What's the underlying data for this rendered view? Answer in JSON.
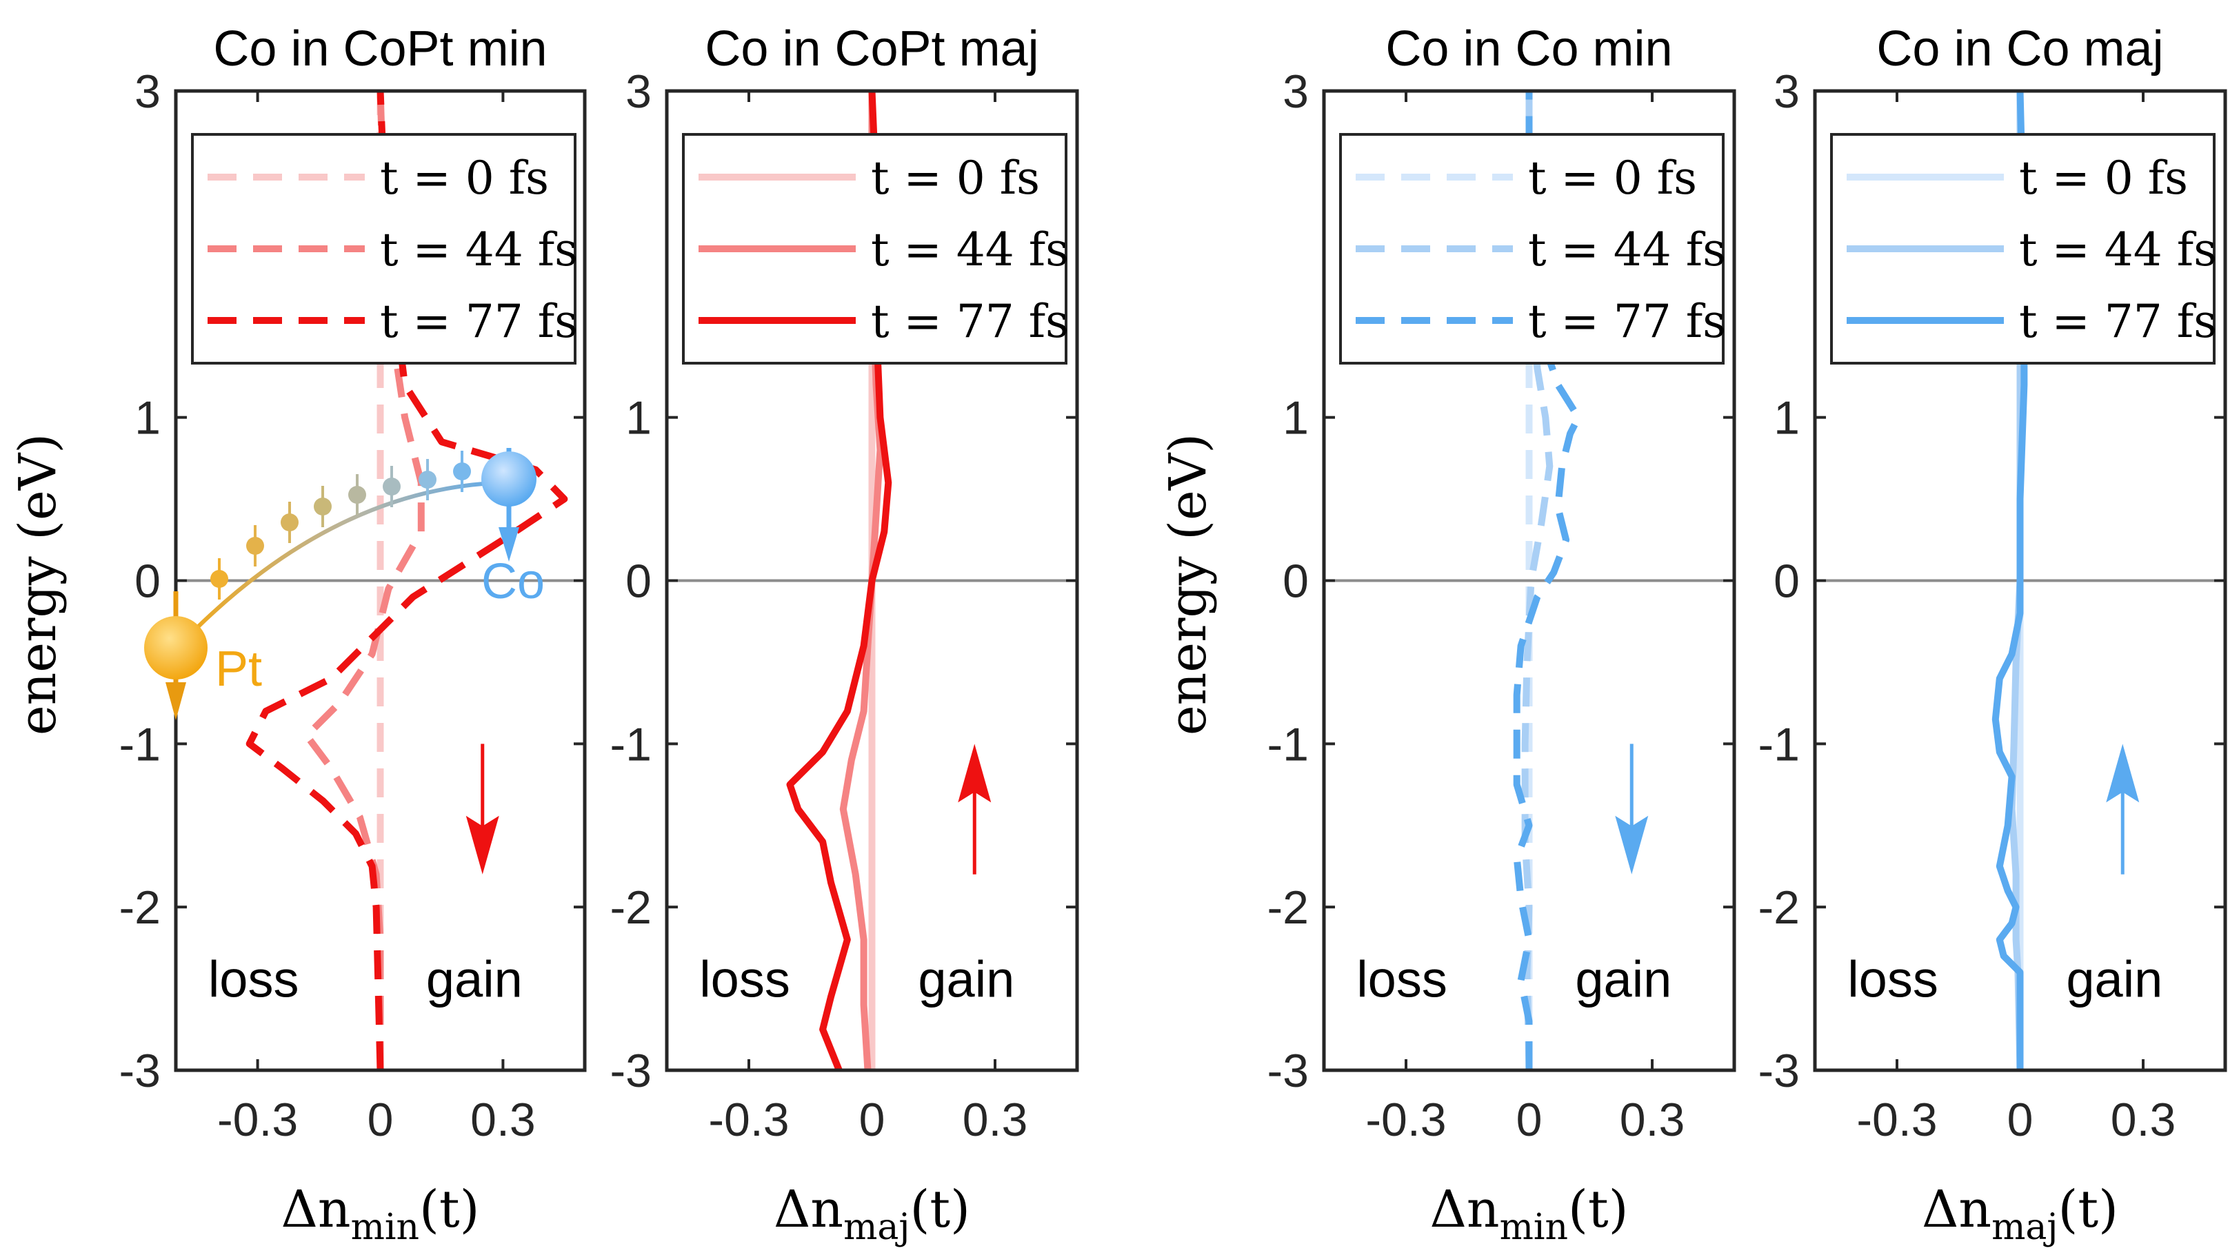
{
  "ylabel": "energy (eV)",
  "xtick_labels": [
    "-0.3",
    "0",
    "0.3"
  ],
  "ytick_labels": [
    "3",
    "1",
    "0",
    "-1",
    "-2",
    "-3"
  ],
  "region_labels": {
    "loss": "loss",
    "gain": "gain"
  },
  "legend_entries": [
    "t = 0 fs",
    "t = 44 fs",
    "t = 77 fs"
  ],
  "inset": {
    "pt_label": "Pt",
    "co_label": "Co",
    "pt_color": "#f3a712",
    "co_color": "#5aaaf0"
  },
  "colors": {
    "red": [
      "#f9c8c8",
      "#f58383",
      "#ee1111"
    ],
    "blue": [
      "#d4e7fb",
      "#a9cff5",
      "#5aaaf0"
    ]
  },
  "chart_data": [
    {
      "type": "line",
      "title": "Co in CoPt min",
      "xlabel_main": "Δn",
      "xlabel_sub": "min",
      "xlabel_arg": "(t)",
      "xlim": [
        -0.5,
        0.5
      ],
      "ylim": [
        -3,
        3
      ],
      "xticks": [
        -0.3,
        0,
        0.3
      ],
      "yticks": [
        3,
        1,
        0,
        -1,
        -2,
        -3
      ],
      "line_style": "dashed",
      "color_set": "red",
      "spin_arrow": "down",
      "show_legend": true,
      "legend_pos": "top-left",
      "series": [
        {
          "name": "t = 0 fs",
          "points": [
            [
              0,
              -3
            ],
            [
              0,
              -2
            ],
            [
              0,
              -1
            ],
            [
              0,
              0
            ],
            [
              0,
              1
            ],
            [
              0,
              2
            ],
            [
              0,
              3
            ]
          ]
        },
        {
          "name": "t = 44 fs",
          "points": [
            [
              0,
              -3
            ],
            [
              0,
              -2.2
            ],
            [
              -0.01,
              -1.8
            ],
            [
              -0.05,
              -1.45
            ],
            [
              -0.12,
              -1.15
            ],
            [
              -0.18,
              -0.95
            ],
            [
              -0.1,
              -0.75
            ],
            [
              -0.02,
              -0.45
            ],
            [
              0.02,
              -0.05
            ],
            [
              0.1,
              0.3
            ],
            [
              0.1,
              0.6
            ],
            [
              0.06,
              1.0
            ],
            [
              0.03,
              1.5
            ],
            [
              0.01,
              2.2
            ],
            [
              0,
              3
            ]
          ]
        },
        {
          "name": "t = 77 fs",
          "points": [
            [
              0,
              -3
            ],
            [
              -0.01,
              -2.0
            ],
            [
              -0.02,
              -1.75
            ],
            [
              -0.06,
              -1.55
            ],
            [
              -0.14,
              -1.35
            ],
            [
              -0.24,
              -1.15
            ],
            [
              -0.32,
              -1.0
            ],
            [
              -0.28,
              -0.8
            ],
            [
              -0.12,
              -0.6
            ],
            [
              0.0,
              -0.3
            ],
            [
              0.08,
              -0.1
            ],
            [
              0.3,
              0.25
            ],
            [
              0.45,
              0.5
            ],
            [
              0.38,
              0.68
            ],
            [
              0.15,
              0.85
            ],
            [
              0.06,
              1.2
            ],
            [
              0.03,
              1.8
            ],
            [
              0.01,
              2.4
            ],
            [
              0.0,
              3
            ]
          ]
        }
      ]
    },
    {
      "type": "line",
      "title": "Co in CoPt maj",
      "xlabel_main": "Δn",
      "xlabel_sub": "maj",
      "xlabel_arg": "(t)",
      "xlim": [
        -0.5,
        0.5
      ],
      "ylim": [
        -3,
        3
      ],
      "xticks": [
        -0.3,
        0,
        0.3
      ],
      "yticks": [
        3,
        1,
        0,
        -1,
        -2,
        -3
      ],
      "line_style": "solid",
      "color_set": "red",
      "spin_arrow": "up",
      "show_legend": true,
      "legend_pos": "top-left",
      "series": [
        {
          "name": "t = 0 fs",
          "points": [
            [
              0,
              -3
            ],
            [
              0,
              -2
            ],
            [
              0,
              -1
            ],
            [
              0,
              0
            ],
            [
              0,
              1
            ],
            [
              0,
              2
            ],
            [
              0,
              3
            ]
          ]
        },
        {
          "name": "t = 44 fs",
          "points": [
            [
              -0.01,
              -3
            ],
            [
              -0.02,
              -2.6
            ],
            [
              -0.02,
              -2.2
            ],
            [
              -0.04,
              -1.8
            ],
            [
              -0.07,
              -1.4
            ],
            [
              -0.05,
              -1.1
            ],
            [
              -0.02,
              -0.8
            ],
            [
              -0.01,
              -0.4
            ],
            [
              0.0,
              0.0
            ],
            [
              0.01,
              0.4
            ],
            [
              0.02,
              0.8
            ],
            [
              0.01,
              1.2
            ],
            [
              0.0,
              2.0
            ],
            [
              0.0,
              3
            ]
          ]
        },
        {
          "name": "t = 77 fs",
          "points": [
            [
              -0.08,
              -3
            ],
            [
              -0.12,
              -2.75
            ],
            [
              -0.1,
              -2.55
            ],
            [
              -0.06,
              -2.2
            ],
            [
              -0.1,
              -1.85
            ],
            [
              -0.12,
              -1.6
            ],
            [
              -0.18,
              -1.4
            ],
            [
              -0.2,
              -1.25
            ],
            [
              -0.12,
              -1.05
            ],
            [
              -0.06,
              -0.8
            ],
            [
              -0.02,
              -0.4
            ],
            [
              0.0,
              0.0
            ],
            [
              0.03,
              0.3
            ],
            [
              0.04,
              0.6
            ],
            [
              0.02,
              1.0
            ],
            [
              0.01,
              1.6
            ],
            [
              0.01,
              2.4
            ],
            [
              0.0,
              3
            ]
          ]
        }
      ]
    },
    {
      "type": "line",
      "title": "Co in Co min",
      "xlabel_main": "Δn",
      "xlabel_sub": "min",
      "xlabel_arg": "(t)",
      "xlim": [
        -0.5,
        0.5
      ],
      "ylim": [
        -3,
        3
      ],
      "xticks": [
        -0.3,
        0,
        0.3
      ],
      "yticks": [
        3,
        1,
        0,
        -1,
        -2,
        -3
      ],
      "line_style": "dashed",
      "color_set": "blue",
      "spin_arrow": "down",
      "show_legend": true,
      "legend_pos": "top-left",
      "series": [
        {
          "name": "t = 0 fs",
          "points": [
            [
              0,
              -3
            ],
            [
              0,
              -2
            ],
            [
              0,
              -1
            ],
            [
              0,
              0
            ],
            [
              0,
              1
            ],
            [
              0,
              2
            ],
            [
              0,
              3
            ]
          ]
        },
        {
          "name": "t = 44 fs",
          "points": [
            [
              0,
              -3
            ],
            [
              -0.005,
              -2.4
            ],
            [
              0,
              -2
            ],
            [
              -0.01,
              -1.6
            ],
            [
              -0.01,
              -1.0
            ],
            [
              -0.005,
              -0.5
            ],
            [
              0.005,
              0.0
            ],
            [
              0.03,
              0.35
            ],
            [
              0.05,
              0.7
            ],
            [
              0.04,
              1.0
            ],
            [
              0.02,
              1.3
            ],
            [
              0.0,
              2.0
            ],
            [
              0,
              3
            ]
          ]
        },
        {
          "name": "t = 77 fs",
          "points": [
            [
              0,
              -3
            ],
            [
              0.0,
              -2.7
            ],
            [
              -0.02,
              -2.45
            ],
            [
              0.0,
              -2.2
            ],
            [
              -0.02,
              -1.95
            ],
            [
              -0.03,
              -1.7
            ],
            [
              0.0,
              -1.5
            ],
            [
              -0.03,
              -1.25
            ],
            [
              -0.03,
              -1.0
            ],
            [
              -0.03,
              -0.7
            ],
            [
              -0.02,
              -0.4
            ],
            [
              0.02,
              -0.1
            ],
            [
              0.06,
              0.05
            ],
            [
              0.09,
              0.25
            ],
            [
              0.07,
              0.45
            ],
            [
              0.08,
              0.7
            ],
            [
              0.1,
              0.9
            ],
            [
              0.12,
              1.0
            ],
            [
              0.07,
              1.2
            ],
            [
              0.03,
              1.5
            ],
            [
              0.0,
              2.5
            ],
            [
              0,
              3
            ]
          ]
        }
      ]
    },
    {
      "type": "line",
      "title": "Co in Co maj",
      "xlabel_main": "Δn",
      "xlabel_sub": "maj",
      "xlabel_arg": "(t)",
      "xlim": [
        -0.5,
        0.5
      ],
      "ylim": [
        -3,
        3
      ],
      "xticks": [
        -0.3,
        0,
        0.3
      ],
      "yticks": [
        3,
        1,
        0,
        -1,
        -2,
        -3
      ],
      "line_style": "solid",
      "color_set": "blue",
      "spin_arrow": "up",
      "show_legend": true,
      "legend_pos": "top-left",
      "series": [
        {
          "name": "t = 0 fs",
          "points": [
            [
              0,
              -3
            ],
            [
              0,
              -2
            ],
            [
              0,
              -1
            ],
            [
              0,
              0
            ],
            [
              0,
              1
            ],
            [
              0,
              2
            ],
            [
              0,
              3
            ]
          ]
        },
        {
          "name": "t = 44 fs",
          "points": [
            [
              0,
              -3
            ],
            [
              -0.005,
              -2.4
            ],
            [
              -0.01,
              -2.2
            ],
            [
              -0.01,
              -1.8
            ],
            [
              -0.02,
              -1.4
            ],
            [
              -0.015,
              -1.0
            ],
            [
              -0.01,
              -0.5
            ],
            [
              0.0,
              0.0
            ],
            [
              0.0,
              1.0
            ],
            [
              0.0,
              3
            ]
          ]
        },
        {
          "name": "t = 77 fs",
          "points": [
            [
              0,
              -3
            ],
            [
              0.0,
              -2.4
            ],
            [
              -0.04,
              -2.3
            ],
            [
              -0.05,
              -2.2
            ],
            [
              -0.02,
              -2.1
            ],
            [
              -0.01,
              -2.0
            ],
            [
              -0.03,
              -1.9
            ],
            [
              -0.05,
              -1.75
            ],
            [
              -0.03,
              -1.5
            ],
            [
              -0.02,
              -1.2
            ],
            [
              -0.05,
              -1.05
            ],
            [
              -0.06,
              -0.85
            ],
            [
              -0.05,
              -0.6
            ],
            [
              -0.02,
              -0.45
            ],
            [
              0.0,
              -0.2
            ],
            [
              0.0,
              0.5
            ],
            [
              0.01,
              1.2
            ],
            [
              0.01,
              2.0
            ],
            [
              0,
              3
            ]
          ]
        }
      ]
    }
  ]
}
